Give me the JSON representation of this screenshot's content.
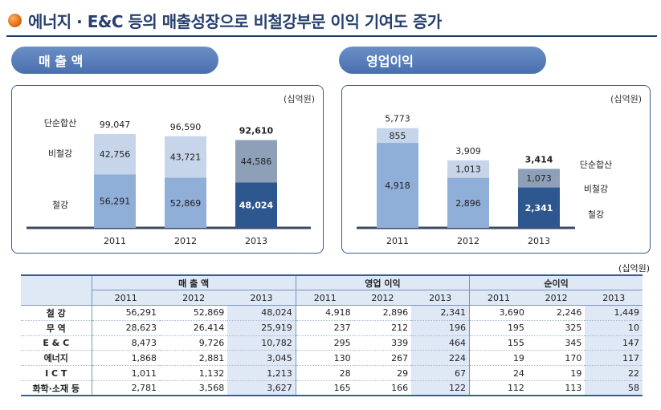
{
  "title": "에너지 · E&C 등의 매출성장으로 비철강부문 이익 기여도 증가",
  "sales_tab": "매 출 액",
  "op_tab": "영업이익",
  "unit": "(십억원)",
  "colors": {
    "light": "#c7d5ea",
    "mid": "#8faed8",
    "dark_top": "#8e9fb8",
    "dark_bottom": "#2f578f",
    "axis": "#3d4a63"
  },
  "chart_data": [
    {
      "type": "bar",
      "stacked": true,
      "categories": [
        "2011",
        "2012",
        "2013"
      ],
      "row_labels": [
        "단순합산",
        "비철강",
        "철강"
      ],
      "series": [
        {
          "name": "철강",
          "values": [
            56291,
            52869,
            48024
          ]
        },
        {
          "name": "비철강",
          "values": [
            42756,
            43721,
            44586
          ]
        }
      ],
      "totals": [
        99047,
        96590,
        92610
      ],
      "totals_text": [
        "99,047",
        "96,590",
        "92,610"
      ],
      "steel_text": [
        "56,291",
        "52,869",
        "48,024"
      ],
      "nonsteel_text": [
        "42,756",
        "43,721",
        "44,586"
      ],
      "ylim": [
        0,
        110000
      ]
    },
    {
      "type": "bar",
      "stacked": true,
      "categories": [
        "2011",
        "2012",
        "2013"
      ],
      "row_labels": [
        "단순합산",
        "비철강",
        "철강"
      ],
      "series": [
        {
          "name": "철강",
          "values": [
            4918,
            2896,
            2341
          ]
        },
        {
          "name": "비철강",
          "values": [
            855,
            1013,
            1073
          ]
        }
      ],
      "totals": [
        5773,
        3909,
        3414
      ],
      "totals_text": [
        "5,773",
        "3,909",
        "3,414"
      ],
      "steel_text": [
        "4,918",
        "2,896",
        "2,341"
      ],
      "nonsteel_text": [
        "855",
        "1,013",
        "1,073"
      ],
      "ylim": [
        0,
        6500
      ]
    }
  ],
  "table": {
    "groups": [
      "매 출 액",
      "영업 이익",
      "순이익"
    ],
    "years": [
      "2011",
      "2012",
      "2013"
    ],
    "rows": [
      {
        "label": "철 강",
        "values": [
          "56,291",
          "52,869",
          "48,024",
          "4,918",
          "2,896",
          "2,341",
          "3,690",
          "2,246",
          "1,449"
        ]
      },
      {
        "label": "무 역",
        "values": [
          "28,623",
          "26,414",
          "25,919",
          "237",
          "212",
          "196",
          "195",
          "325",
          "10"
        ]
      },
      {
        "label": "E & C",
        "values": [
          "8,473",
          "9,726",
          "10,782",
          "295",
          "339",
          "464",
          "155",
          "345",
          "147"
        ]
      },
      {
        "label": "에너지",
        "values": [
          "1,868",
          "2,881",
          "3,045",
          "130",
          "267",
          "224",
          "19",
          "170",
          "117"
        ]
      },
      {
        "label": "I C T",
        "values": [
          "1,011",
          "1,132",
          "1,213",
          "28",
          "29",
          "67",
          "24",
          "19",
          "22"
        ]
      },
      {
        "label": "화학·소재 등",
        "values": [
          "2,781",
          "3,568",
          "3,627",
          "165",
          "166",
          "122",
          "112",
          "113",
          "58"
        ]
      }
    ]
  }
}
